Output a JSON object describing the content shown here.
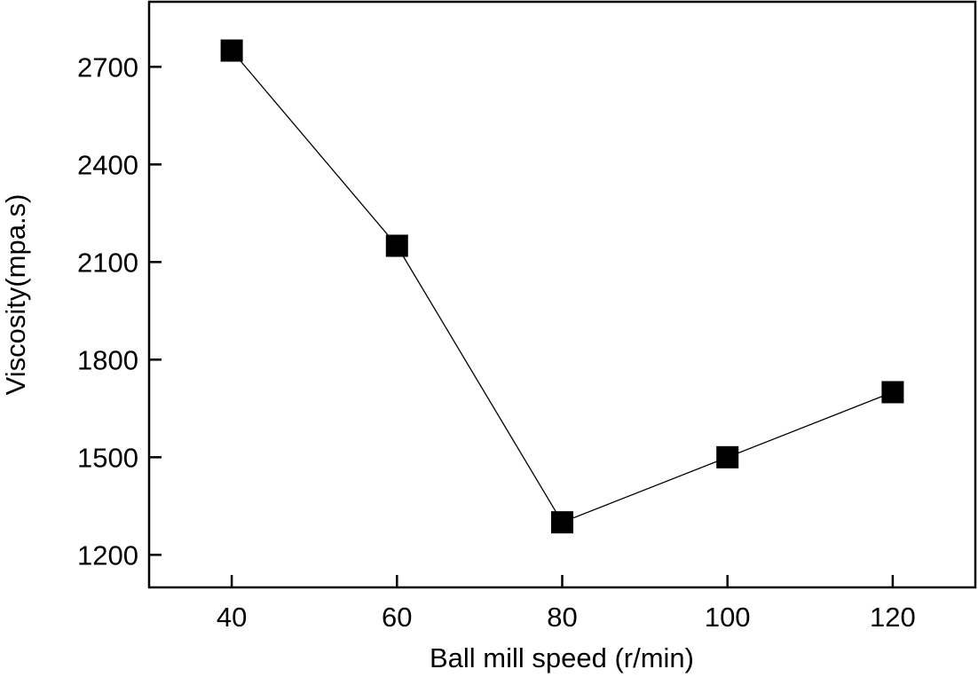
{
  "chart_data": {
    "type": "line",
    "title": "",
    "xlabel": "Ball mill speed (r/min)",
    "ylabel": "Viscosity(mpa.s)",
    "x": [
      40,
      60,
      80,
      100,
      120
    ],
    "series": [
      {
        "name": "Viscosity",
        "values": [
          2750,
          2150,
          1300,
          1500,
          1700
        ],
        "marker": "square",
        "color": "#000000"
      }
    ],
    "xlim": [
      30,
      130
    ],
    "ylim": [
      1100,
      2900
    ],
    "xticks": [
      "40",
      "60",
      "80",
      "100",
      "120"
    ],
    "yticks": [
      "1200",
      "1500",
      "1800",
      "2100",
      "2400",
      "2700"
    ],
    "grid": false,
    "legend": "none"
  }
}
